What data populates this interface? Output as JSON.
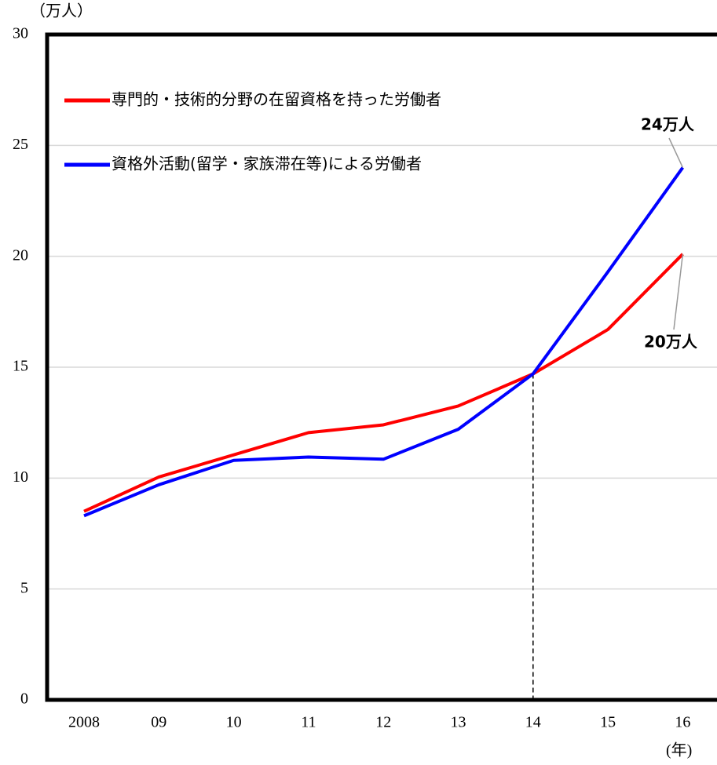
{
  "chart_data": {
    "type": "line",
    "y_label": "（万人）",
    "x_label": "(年)",
    "categories": [
      "2008",
      "09",
      "10",
      "11",
      "12",
      "13",
      "14",
      "15",
      "16"
    ],
    "series": [
      {
        "name": "専門的・技術的分野の在留資格を持った労働者",
        "color": "#ff0000",
        "values": [
          8.5,
          10.05,
          11.05,
          12.05,
          12.4,
          13.25,
          14.7,
          16.7,
          20.1
        ]
      },
      {
        "name": "資格外活動(留学・家族滞在等)による労働者",
        "color": "#0000ff",
        "values": [
          8.3,
          9.7,
          10.8,
          10.95,
          10.85,
          12.2,
          14.7,
          19.3,
          24
        ]
      }
    ],
    "annotations": [
      "24万人",
      "20万人"
    ],
    "ylim": [
      0,
      30
    ],
    "yticks": [
      0,
      5,
      10,
      15,
      20,
      25,
      30
    ],
    "grid": true
  }
}
